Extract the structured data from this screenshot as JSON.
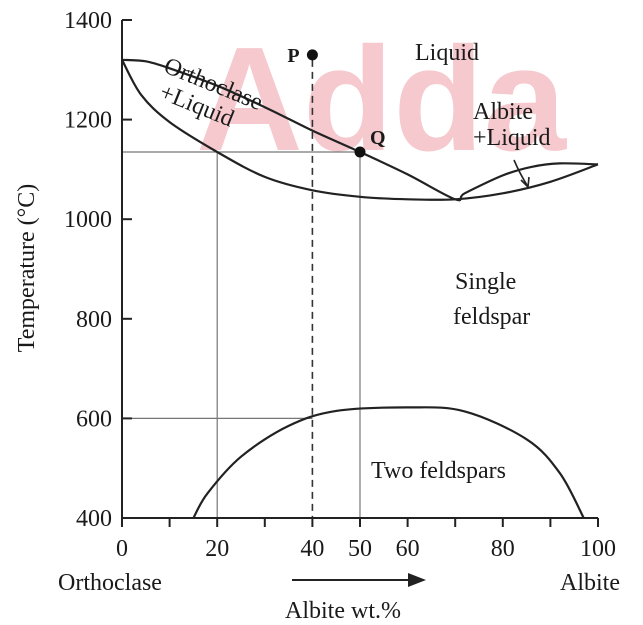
{
  "watermark": "Adda",
  "chart_data": {
    "type": "phase-diagram",
    "xlabel": "Albite wt.%",
    "ylabel": "Temperature (°C)",
    "x_end_left": "Orthoclase",
    "x_end_right": "Albite",
    "xlim": [
      0,
      100
    ],
    "ylim": [
      400,
      1400
    ],
    "x_ticks": [
      0,
      20,
      40,
      50,
      60,
      80,
      100
    ],
    "x_minor_ticks": [
      10,
      30,
      70,
      90
    ],
    "y_ticks": [
      400,
      600,
      800,
      1000,
      1200,
      1400
    ],
    "regions": {
      "liquid": "Liquid",
      "orthoclase_liquid": [
        "Orthoclase",
        "+Liquid"
      ],
      "albite_liquid": [
        "Albite",
        "+Liquid"
      ],
      "single_feldspar": [
        "Single",
        "feldspar"
      ],
      "two_feldspars": "Two feldspars"
    },
    "points": [
      {
        "label": "P",
        "x": 40,
        "y": 1330
      },
      {
        "label": "Q",
        "x": 50,
        "y": 1135
      }
    ],
    "liquidus": [
      {
        "x": 0,
        "y": 1320
      },
      {
        "x": 5,
        "y": 1317
      },
      {
        "x": 10,
        "y": 1303
      },
      {
        "x": 20,
        "y": 1268
      },
      {
        "x": 30,
        "y": 1225
      },
      {
        "x": 40,
        "y": 1178
      },
      {
        "x": 50,
        "y": 1135
      },
      {
        "x": 60,
        "y": 1090
      },
      {
        "x": 70,
        "y": 1040
      },
      {
        "x": 72,
        "y": 1052
      },
      {
        "x": 80,
        "y": 1088
      },
      {
        "x": 86,
        "y": 1105
      },
      {
        "x": 92,
        "y": 1112
      },
      {
        "x": 100,
        "y": 1110
      }
    ],
    "solidus": [
      {
        "x": 0,
        "y": 1320
      },
      {
        "x": 4,
        "y": 1250
      },
      {
        "x": 10,
        "y": 1195
      },
      {
        "x": 20,
        "y": 1135
      },
      {
        "x": 30,
        "y": 1085
      },
      {
        "x": 40,
        "y": 1058
      },
      {
        "x": 50,
        "y": 1045
      },
      {
        "x": 60,
        "y": 1040
      },
      {
        "x": 70,
        "y": 1040
      },
      {
        "x": 80,
        "y": 1052
      },
      {
        "x": 90,
        "y": 1075
      },
      {
        "x": 100,
        "y": 1110
      }
    ],
    "solvus": [
      {
        "x": 15,
        "y": 400
      },
      {
        "x": 18,
        "y": 450
      },
      {
        "x": 25,
        "y": 523
      },
      {
        "x": 35,
        "y": 585
      },
      {
        "x": 45,
        "y": 615
      },
      {
        "x": 60,
        "y": 622
      },
      {
        "x": 72,
        "y": 614
      },
      {
        "x": 85,
        "y": 558
      },
      {
        "x": 92,
        "y": 490
      },
      {
        "x": 97,
        "y": 400
      }
    ],
    "guides": [
      {
        "from": {
          "x": 0,
          "y": 1135
        },
        "to": {
          "x": 50,
          "y": 1135
        }
      },
      {
        "from": {
          "x": 20,
          "y": 1135
        },
        "to": {
          "x": 20,
          "y": 400
        }
      },
      {
        "from": {
          "x": 50,
          "y": 1135
        },
        "to": {
          "x": 50,
          "y": 400
        }
      },
      {
        "from": {
          "x": 0,
          "y": 600
        },
        "to": {
          "x": 40,
          "y": 600
        }
      }
    ],
    "isopleth_dashed": {
      "x": 40,
      "y_from": 1320,
      "y_to": 400
    }
  }
}
